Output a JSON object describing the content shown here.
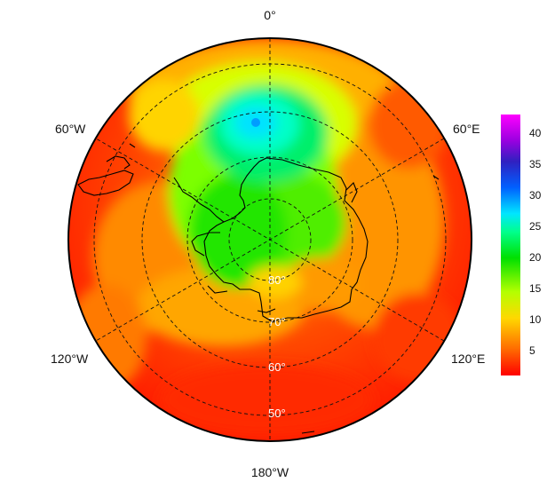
{
  "map": {
    "projection": "south-polar-stereographic",
    "longitude_labels": {
      "top": "0°",
      "upper_left": "60°W",
      "upper_right": "60°E",
      "lower_left": "120°W",
      "lower_right": "120°E",
      "bottom": "180°W"
    },
    "latitude_labels": [
      "80°",
      "70°",
      "60°",
      "50°"
    ],
    "graticule_style": "dashed",
    "coastline": "Antarctica"
  },
  "colorbar": {
    "ticks": [
      "5",
      "10",
      "15",
      "20",
      "25",
      "30",
      "35",
      "40"
    ],
    "tick_values": [
      5,
      10,
      15,
      20,
      25,
      30,
      35,
      40
    ],
    "min": 1,
    "max": 43,
    "colors": [
      "#ff0000",
      "#ff6a00",
      "#ffd800",
      "#b4ff00",
      "#00e000",
      "#00ff8c",
      "#00e6ff",
      "#0060ff",
      "#3020c0",
      "#9a00e0",
      "#ff00ff"
    ]
  }
}
